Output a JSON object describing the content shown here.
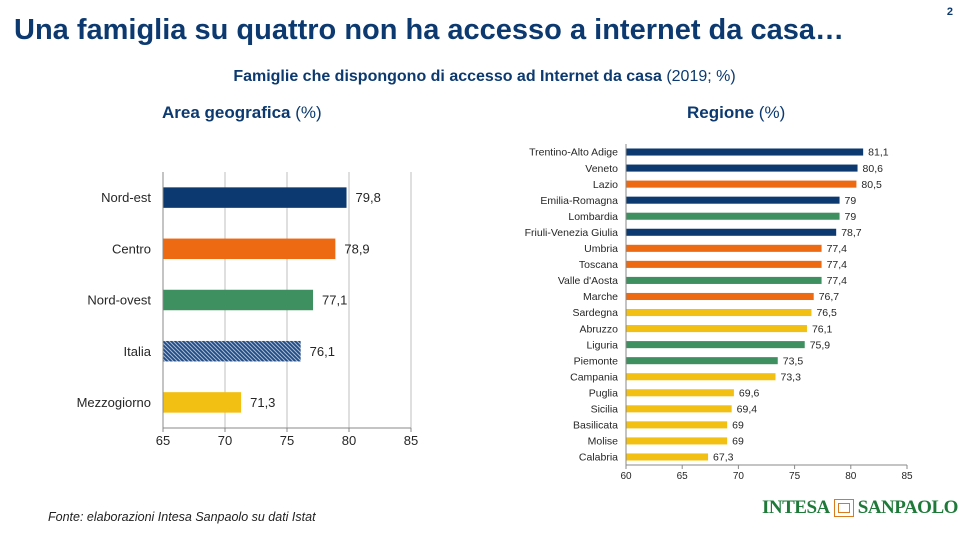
{
  "page": {
    "title": "Una famiglia su quattro non ha accesso a internet da casa…",
    "page_number": "2",
    "subtitle_bold": "Famiglie che dispongono di accesso ad Internet da casa",
    "subtitle_rest": " (2019; %)",
    "left_heading_bold": "Area geografica",
    "left_heading_rest": " (%)",
    "right_heading_bold": "Regione",
    "right_heading_rest": " (%)",
    "source": "Fonte: elaborazioni Intesa Sanpaolo su dati Istat",
    "logo_left": "INTESA",
    "logo_right": "SANPAOLO"
  },
  "colors": {
    "title": "#0c3a70",
    "nord_est": "#0c3a70",
    "centro": "#ee6a12",
    "nord_ovest": "#3f9060",
    "italia": "#1e4a86",
    "mezzogiorno": "#f2c012",
    "axis": "#888888",
    "grid": "#bfbfbf"
  },
  "chart_data": [
    {
      "type": "bar",
      "orientation": "horizontal",
      "title": "Area geografica (%)",
      "categories": [
        "Nord-est",
        "Centro",
        "Nord-ovest",
        "Italia",
        "Mezzogiorno"
      ],
      "values": [
        79.8,
        78.9,
        77.1,
        76.1,
        71.3
      ],
      "value_labels": [
        "79,8",
        "78,9",
        "77,1",
        "76,1",
        "71,3"
      ],
      "groups": [
        "nord_est",
        "centro",
        "nord_ovest",
        "italia",
        "mezzogiorno"
      ],
      "xlim": [
        65,
        85
      ],
      "xticks": [
        65,
        70,
        75,
        80,
        85
      ],
      "xtick_labels": [
        "65",
        "70",
        "75",
        "80",
        "85"
      ],
      "grid": true
    },
    {
      "type": "bar",
      "orientation": "horizontal",
      "title": "Regione (%)",
      "categories": [
        "Trentino-Alto Adige",
        "Veneto",
        "Lazio",
        "Emilia-Romagna",
        "Lombardia",
        "Friuli-Venezia Giulia",
        "Umbria",
        "Toscana",
        "Valle d'Aosta",
        "Marche",
        "Sardegna",
        "Abruzzo",
        "Liguria",
        "Piemonte",
        "Campania",
        "Puglia",
        "Sicilia",
        "Basilicata",
        "Molise",
        "Calabria"
      ],
      "values": [
        81.1,
        80.6,
        80.5,
        79,
        79,
        78.7,
        77.4,
        77.4,
        77.4,
        76.7,
        76.5,
        76.1,
        75.9,
        73.5,
        73.3,
        69.6,
        69.4,
        69,
        69,
        67.3
      ],
      "value_labels": [
        "81,1",
        "80,6",
        "80,5",
        "79",
        "79",
        "78,7",
        "77,4",
        "77,4",
        "77,4",
        "76,7",
        "76,5",
        "76,1",
        "75,9",
        "73,5",
        "73,3",
        "69,6",
        "69,4",
        "69",
        "69",
        "67,3"
      ],
      "groups": [
        "nord_est",
        "nord_est",
        "centro",
        "nord_est",
        "nord_ovest",
        "nord_est",
        "centro",
        "centro",
        "nord_ovest",
        "centro",
        "mezzogiorno",
        "mezzogiorno",
        "nord_ovest",
        "nord_ovest",
        "mezzogiorno",
        "mezzogiorno",
        "mezzogiorno",
        "mezzogiorno",
        "mezzogiorno",
        "mezzogiorno"
      ],
      "xlim": [
        60,
        85
      ],
      "xticks": [
        60,
        65,
        70,
        75,
        80,
        85
      ],
      "xtick_labels": [
        "60",
        "65",
        "70",
        "75",
        "80",
        "85"
      ],
      "grid": false
    }
  ]
}
